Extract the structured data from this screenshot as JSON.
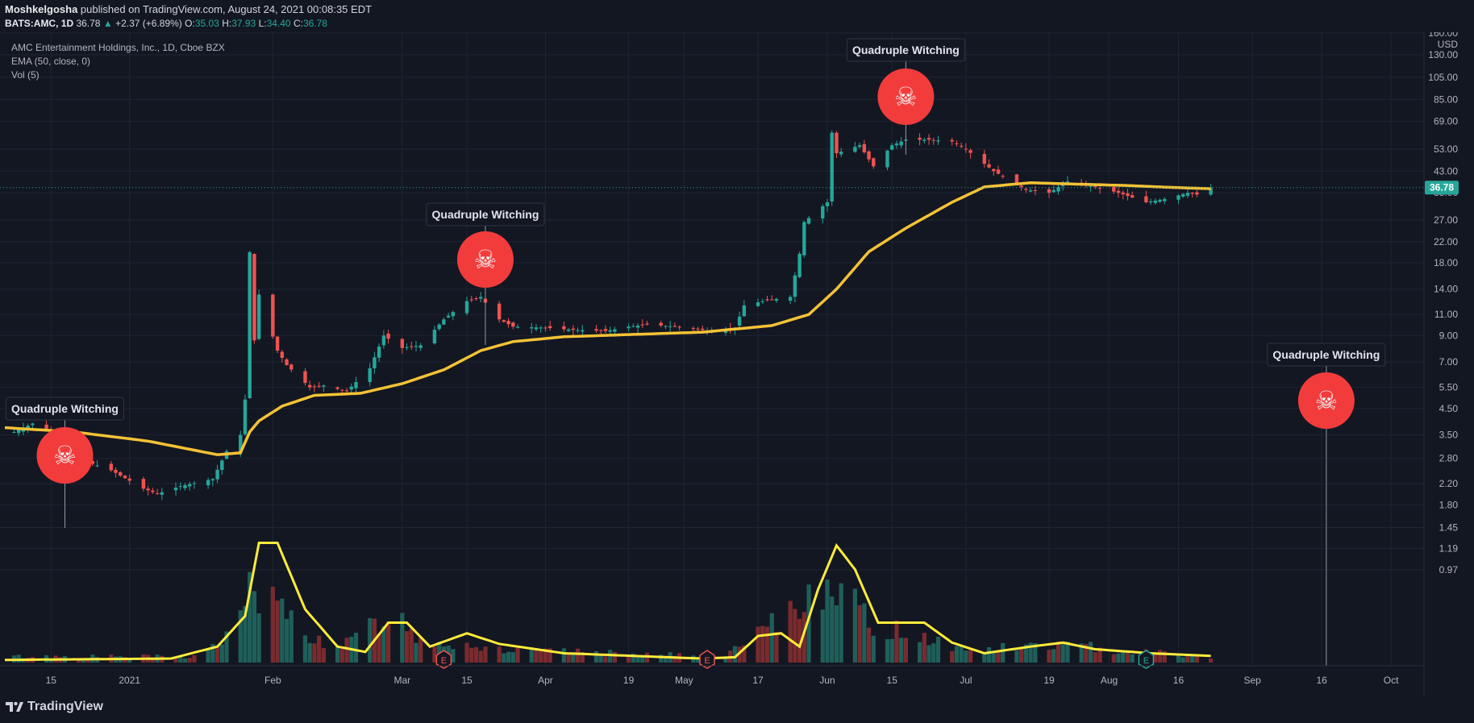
{
  "header": {
    "author": "Moshkelgosha",
    "published_text": " published on TradingView.com, August 24, 2021 00:08:35 EDT",
    "symbol_line": "BATS:AMC, 1D",
    "last": "36.78",
    "arrow": "▲",
    "change": "+2.37 (+6.89%)",
    "o_label": "O:",
    "o": "35.03",
    "h_label": "H:",
    "h": "37.93",
    "l_label": "L:",
    "l": "34.40",
    "c_label": "C:",
    "c": "36.78"
  },
  "legend": {
    "title": "AMC Entertainment Holdings, Inc., 1D, Cboe BZX",
    "ema": "EMA (50, close, 0)",
    "vol": "Vol (5)"
  },
  "footer": {
    "brand": "TradingView"
  },
  "colors": {
    "up": "#26a69a",
    "down": "#ef5350",
    "ema": "#f5c235",
    "vol_ma": "#ffeb3b",
    "bg": "#131722",
    "grid": "#1f2433",
    "marker": "#f23c3c",
    "price_tag": "#26a69a"
  },
  "chart_data": {
    "type": "candlestick",
    "scale": "log",
    "currency": "USD",
    "price_axis": [
      "160.00",
      "130.00",
      "105.00",
      "85.00",
      "69.00",
      "53.00",
      "43.00",
      "35.00",
      "27.00",
      "22.00",
      "18.00",
      "14.00",
      "11.00",
      "9.00",
      "7.00",
      "5.50",
      "4.50",
      "3.50",
      "2.80",
      "2.20",
      "1.80",
      "1.45",
      "1.19",
      "0.97"
    ],
    "last_price": "36.78",
    "x_ticks": [
      {
        "label": "15",
        "date": "2020-12-15"
      },
      {
        "label": "2021",
        "date": "2021-01-01"
      },
      {
        "label": "Feb",
        "date": "2021-02-01"
      },
      {
        "label": "Mar",
        "date": "2021-03-01"
      },
      {
        "label": "15",
        "date": "2021-03-15"
      },
      {
        "label": "Apr",
        "date": "2021-04-01"
      },
      {
        "label": "19",
        "date": "2021-04-19"
      },
      {
        "label": "May",
        "date": "2021-05-01"
      },
      {
        "label": "17",
        "date": "2021-05-17"
      },
      {
        "label": "Jun",
        "date": "2021-06-01"
      },
      {
        "label": "15",
        "date": "2021-06-15"
      },
      {
        "label": "Jul",
        "date": "2021-07-01"
      },
      {
        "label": "19",
        "date": "2021-07-19"
      },
      {
        "label": "Aug",
        "date": "2021-08-01"
      },
      {
        "label": "16",
        "date": "2021-08-16"
      },
      {
        "label": "Sep",
        "date": "2021-09-01"
      },
      {
        "label": "16",
        "date": "2021-09-16"
      },
      {
        "label": "Oct",
        "date": "2021-10-01"
      }
    ],
    "x_range": [
      "2020-12-05",
      "2021-10-05"
    ],
    "price_path": [
      [
        "2020-12-07",
        3.6
      ],
      [
        "2020-12-11",
        3.9
      ],
      [
        "2020-12-15",
        3.6
      ],
      [
        "2020-12-18",
        2.9
      ],
      [
        "2020-12-23",
        2.7
      ],
      [
        "2020-12-28",
        2.5
      ],
      [
        "2021-01-04",
        2.1
      ],
      [
        "2021-01-07",
        2.0
      ],
      [
        "2021-01-12",
        2.15
      ],
      [
        "2021-01-19",
        2.3
      ],
      [
        "2021-01-22",
        3.0
      ],
      [
        "2021-01-25",
        3.5
      ],
      [
        "2021-01-26",
        4.9
      ],
      [
        "2021-01-27",
        19.9
      ],
      [
        "2021-01-28",
        8.6
      ],
      [
        "2021-01-29",
        13.3
      ],
      [
        "2021-02-02",
        7.8
      ],
      [
        "2021-02-04",
        6.8
      ],
      [
        "2021-02-09",
        5.5
      ],
      [
        "2021-02-12",
        5.6
      ],
      [
        "2021-02-17",
        5.3
      ],
      [
        "2021-02-22",
        6.6
      ],
      [
        "2021-02-25",
        9.0
      ],
      [
        "2021-03-01",
        8.0
      ],
      [
        "2021-03-05",
        8.2
      ],
      [
        "2021-03-10",
        10.5
      ],
      [
        "2021-03-15",
        12.5
      ],
      [
        "2021-03-18",
        13.0
      ],
      [
        "2021-03-22",
        10.5
      ],
      [
        "2021-03-25",
        9.8
      ],
      [
        "2021-04-01",
        9.7
      ],
      [
        "2021-04-07",
        9.5
      ],
      [
        "2021-04-14",
        9.4
      ],
      [
        "2021-04-19",
        9.8
      ],
      [
        "2021-04-23",
        10.0
      ],
      [
        "2021-04-29",
        9.8
      ],
      [
        "2021-05-07",
        9.4
      ],
      [
        "2021-05-12",
        9.7
      ],
      [
        "2021-05-14",
        12.0
      ],
      [
        "2021-05-19",
        12.6
      ],
      [
        "2021-05-24",
        13.0
      ],
      [
        "2021-05-26",
        19.6
      ],
      [
        "2021-05-27",
        26.5
      ],
      [
        "2021-06-01",
        32.0
      ],
      [
        "2021-06-02",
        62.0
      ],
      [
        "2021-06-03",
        51.0
      ],
      [
        "2021-06-08",
        55.0
      ],
      [
        "2021-06-11",
        45.0
      ],
      [
        "2021-06-15",
        55.0
      ],
      [
        "2021-06-18",
        58.0
      ],
      [
        "2021-06-23",
        58.0
      ],
      [
        "2021-06-28",
        57.0
      ],
      [
        "2021-07-01",
        53.0
      ],
      [
        "2021-07-07",
        43.0
      ],
      [
        "2021-07-14",
        36.0
      ],
      [
        "2021-07-19",
        35.0
      ],
      [
        "2021-07-23",
        39.0
      ],
      [
        "2021-07-29",
        37.0
      ],
      [
        "2021-08-03",
        35.0
      ],
      [
        "2021-08-09",
        32.0
      ],
      [
        "2021-08-13",
        33.0
      ],
      [
        "2021-08-18",
        35.0
      ],
      [
        "2021-08-20",
        34.4
      ],
      [
        "2021-08-23",
        36.78
      ]
    ],
    "ema_path": [
      [
        "2020-12-05",
        3.75
      ],
      [
        "2020-12-20",
        3.6
      ],
      [
        "2021-01-05",
        3.3
      ],
      [
        "2021-01-20",
        2.9
      ],
      [
        "2021-01-25",
        2.95
      ],
      [
        "2021-01-27",
        3.6
      ],
      [
        "2021-01-29",
        4.0
      ],
      [
        "2021-02-03",
        4.6
      ],
      [
        "2021-02-10",
        5.1
      ],
      [
        "2021-02-20",
        5.2
      ],
      [
        "2021-03-01",
        5.7
      ],
      [
        "2021-03-10",
        6.5
      ],
      [
        "2021-03-18",
        7.8
      ],
      [
        "2021-03-25",
        8.5
      ],
      [
        "2021-04-05",
        8.9
      ],
      [
        "2021-04-20",
        9.1
      ],
      [
        "2021-05-05",
        9.3
      ],
      [
        "2021-05-20",
        9.9
      ],
      [
        "2021-05-28",
        11.0
      ],
      [
        "2021-06-03",
        14.0
      ],
      [
        "2021-06-10",
        20.0
      ],
      [
        "2021-06-18",
        25.0
      ],
      [
        "2021-06-28",
        32.0
      ],
      [
        "2021-07-05",
        37.0
      ],
      [
        "2021-07-15",
        38.5
      ],
      [
        "2021-07-25",
        38.0
      ],
      [
        "2021-08-05",
        37.5
      ],
      [
        "2021-08-15",
        36.8
      ],
      [
        "2021-08-23",
        36.4
      ]
    ],
    "volume_peaks": [
      [
        "2020-12-05",
        0.05
      ],
      [
        "2021-01-15",
        0.05
      ],
      [
        "2021-01-22",
        0.2
      ],
      [
        "2021-01-26",
        0.4
      ],
      [
        "2021-01-27",
        1.0
      ],
      [
        "2021-01-28",
        0.6
      ],
      [
        "2021-02-05",
        0.35
      ],
      [
        "2021-02-15",
        0.1
      ],
      [
        "2021-02-24",
        0.35
      ],
      [
        "2021-02-26",
        0.45
      ],
      [
        "2021-03-05",
        0.2
      ],
      [
        "2021-03-15",
        0.15
      ],
      [
        "2021-03-25",
        0.1
      ],
      [
        "2021-05-10",
        0.05
      ],
      [
        "2021-05-20",
        0.3
      ],
      [
        "2021-05-28",
        0.55
      ],
      [
        "2021-06-02",
        0.8
      ],
      [
        "2021-06-03",
        0.7
      ],
      [
        "2021-06-10",
        0.3
      ],
      [
        "2021-06-20",
        0.25
      ],
      [
        "2021-07-01",
        0.1
      ],
      [
        "2021-07-20",
        0.15
      ],
      [
        "2021-08-23",
        0.05
      ]
    ],
    "vol_ma_path": [
      [
        "2020-12-05",
        0.02
      ],
      [
        "2021-01-10",
        0.03
      ],
      [
        "2021-01-20",
        0.12
      ],
      [
        "2021-01-26",
        0.35
      ],
      [
        "2021-01-29",
        0.9
      ],
      [
        "2021-02-02",
        0.9
      ],
      [
        "2021-02-08",
        0.4
      ],
      [
        "2021-02-15",
        0.12
      ],
      [
        "2021-02-21",
        0.08
      ],
      [
        "2021-02-26",
        0.3
      ],
      [
        "2021-03-02",
        0.3
      ],
      [
        "2021-03-07",
        0.12
      ],
      [
        "2021-03-15",
        0.22
      ],
      [
        "2021-03-22",
        0.14
      ],
      [
        "2021-04-05",
        0.07
      ],
      [
        "2021-05-05",
        0.03
      ],
      [
        "2021-05-12",
        0.04
      ],
      [
        "2021-05-17",
        0.2
      ],
      [
        "2021-05-22",
        0.22
      ],
      [
        "2021-05-26",
        0.12
      ],
      [
        "2021-05-30",
        0.55
      ],
      [
        "2021-06-03",
        0.88
      ],
      [
        "2021-06-07",
        0.7
      ],
      [
        "2021-06-12",
        0.3
      ],
      [
        "2021-06-22",
        0.3
      ],
      [
        "2021-06-28",
        0.15
      ],
      [
        "2021-07-05",
        0.07
      ],
      [
        "2021-07-15",
        0.12
      ],
      [
        "2021-07-22",
        0.15
      ],
      [
        "2021-07-29",
        0.1
      ],
      [
        "2021-08-10",
        0.07
      ],
      [
        "2021-08-23",
        0.05
      ]
    ],
    "annotations": [
      {
        "label": "Quadruple Witching",
        "date": "2020-12-18",
        "icon": "skull-icon",
        "glyph": "☠"
      },
      {
        "label": "Quadruple Witching",
        "date": "2021-03-19",
        "icon": "skull-icon",
        "glyph": "☠"
      },
      {
        "label": "Quadruple Witching",
        "date": "2021-06-18",
        "icon": "skull-icon",
        "glyph": "☠"
      },
      {
        "label": "Quadruple Witching",
        "date": "2021-09-17",
        "icon": "skull-icon",
        "glyph": "☠"
      }
    ],
    "earnings_markers": [
      {
        "date": "2021-03-10",
        "label": "E",
        "kind": "down"
      },
      {
        "date": "2021-05-06",
        "label": "E",
        "kind": "down"
      },
      {
        "date": "2021-08-09",
        "label": "E",
        "kind": "up"
      }
    ]
  }
}
